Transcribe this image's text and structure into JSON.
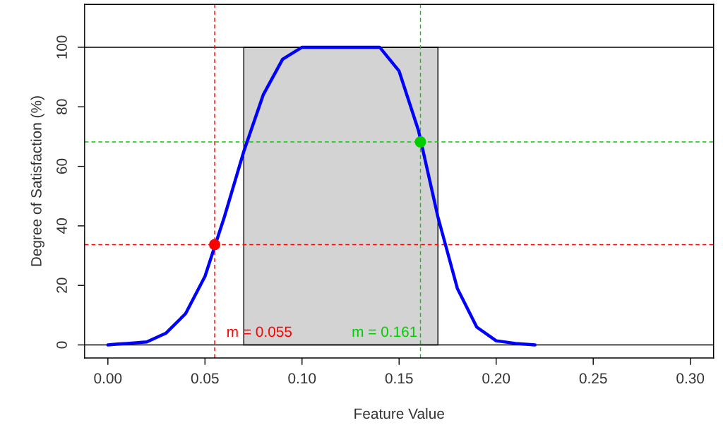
{
  "chart_data": {
    "type": "line",
    "xlabel": "Feature Value",
    "ylabel": "Degree of Satisfaction (%)",
    "xlim": [
      -0.012,
      0.312
    ],
    "ylim": [
      -4.4,
      114.4
    ],
    "xticks": [
      {
        "value": 0,
        "label": "0.00"
      },
      {
        "value": 0.05,
        "label": "0.05"
      },
      {
        "value": 0.1,
        "label": "0.10"
      },
      {
        "value": 0.15,
        "label": "0.15"
      },
      {
        "value": 0.2,
        "label": "0.20"
      },
      {
        "value": 0.25,
        "label": "0.25"
      },
      {
        "value": 0.3,
        "label": "0.30"
      }
    ],
    "yticks": [
      0,
      20,
      40,
      60,
      80,
      100
    ],
    "grid": false,
    "legend": false,
    "marker": "none",
    "series": [
      {
        "color": "#0000ff",
        "x": [
          0,
          0.005,
          0.01,
          0.02,
          0.03,
          0.04,
          0.05,
          0.06,
          0.07,
          0.08,
          0.09,
          0.1,
          0.11,
          0.12,
          0.13,
          0.14,
          0.15,
          0.16,
          0.17,
          0.18,
          0.19,
          0.2,
          0.21,
          0.22
        ],
        "values": [
          0,
          0.3,
          0.5,
          1,
          4,
          10.5,
          23,
          43,
          65,
          84,
          96,
          100,
          100,
          100,
          100,
          100,
          92,
          72,
          43,
          19,
          6,
          1.4,
          0.5,
          0
        ]
      },
      {
        "type": "scatter",
        "color": "#ff0000",
        "x": [
          0.055
        ],
        "values": [
          33.7
        ],
        "marker": "circle"
      },
      {
        "type": "scatter",
        "color": "#00cc00",
        "x": [
          0.161
        ],
        "values": [
          68.2
        ],
        "marker": "circle"
      }
    ],
    "bands": [
      {
        "axis": "x",
        "from": 0.07,
        "to": 0.17,
        "color": "#d3d3d3"
      }
    ],
    "ref_lines": [
      {
        "axis": "y",
        "value": 0,
        "color": "#000000",
        "line_style": "solid"
      },
      {
        "axis": "y",
        "value": 100,
        "color": "#000000",
        "line_style": "solid"
      },
      {
        "axis": "x",
        "value": 0.055,
        "color": "#ff0000",
        "line_style": "dashed"
      },
      {
        "axis": "y",
        "value": 33.7,
        "color": "#ff0000",
        "line_style": "dashed"
      },
      {
        "axis": "x",
        "value": 0.161,
        "color": "#00cc00",
        "line_style": "dashed"
      },
      {
        "axis": "y",
        "value": 68.2,
        "color": "#00cc00",
        "line_style": "dashed"
      }
    ],
    "annotations": [
      {
        "text": "m = 0.055",
        "x": 0.055,
        "y": 4
      },
      {
        "text": "m = 0.161",
        "x": 0.161,
        "y": 4
      }
    ]
  }
}
